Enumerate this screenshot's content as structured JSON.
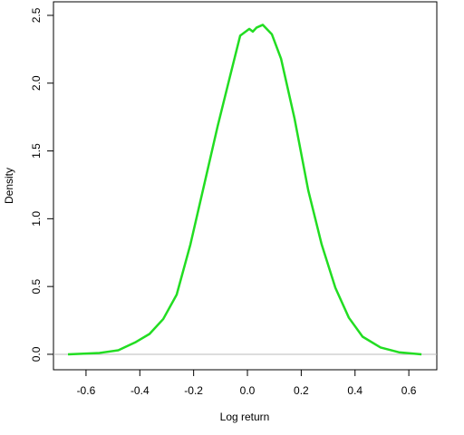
{
  "chart_data": {
    "type": "line",
    "x_label": "Log return",
    "y_label": "Density",
    "x": [
      -0.667,
      -0.55,
      -0.48,
      -0.415,
      -0.364,
      -0.313,
      -0.263,
      -0.212,
      -0.162,
      -0.111,
      -0.061,
      -0.027,
      0.007,
      0.02,
      0.034,
      0.057,
      0.091,
      0.125,
      0.175,
      0.226,
      0.276,
      0.327,
      0.377,
      0.428,
      0.495,
      0.563,
      0.647
    ],
    "series": [
      {
        "color": "#22dd22",
        "values": [
          0.0,
          0.01,
          0.03,
          0.09,
          0.15,
          0.26,
          0.44,
          0.81,
          1.24,
          1.68,
          2.08,
          2.35,
          2.4,
          2.38,
          2.41,
          2.43,
          2.36,
          2.18,
          1.74,
          1.21,
          0.81,
          0.49,
          0.27,
          0.13,
          0.05,
          0.015,
          0.0
        ]
      }
    ],
    "xlim": [
      -0.721,
      0.704
    ],
    "ylim": [
      -0.114,
      2.6
    ],
    "xticks": [
      -0.6,
      -0.4,
      -0.2,
      {
        "value": 0,
        "label": "0.0"
      },
      0.2,
      0.4,
      0.6
    ],
    "yticks": [
      {
        "value": 0,
        "label": "0.0"
      },
      0.5,
      {
        "value": 1,
        "label": "1.0"
      },
      1.5,
      {
        "value": 2,
        "label": "2.0"
      },
      2.5
    ],
    "baseline": 0,
    "baseline_color": "#bbbbbb"
  }
}
